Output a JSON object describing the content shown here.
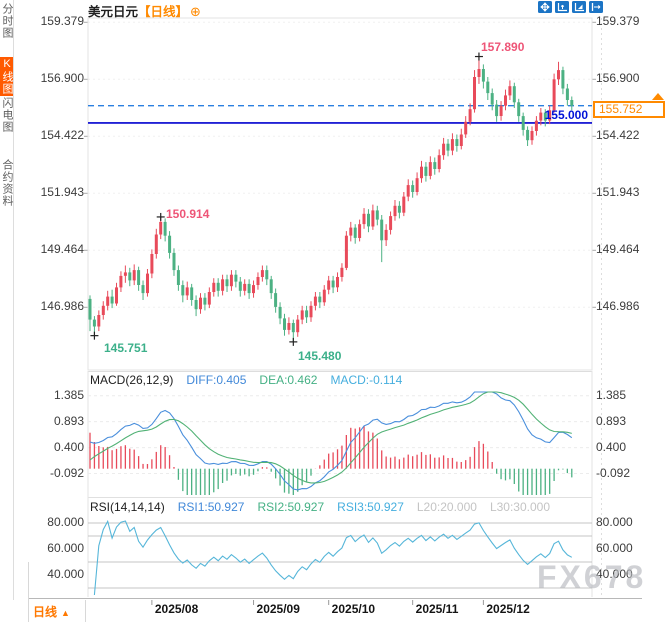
{
  "sidebar": {
    "items": [
      {
        "label": "分时图",
        "active": false
      },
      {
        "label": "K线图",
        "active": true
      },
      {
        "label": "闪电图",
        "active": false
      },
      {
        "label": "合约资料",
        "active": false
      }
    ]
  },
  "header": {
    "title": "美元日元",
    "period": "【日线】",
    "plus_icon": "⊕"
  },
  "toolbar": {
    "icons": [
      "crosshair-pan-icon",
      "axis-zoom-icon",
      "axis-scale-icon",
      "export-right-icon"
    ]
  },
  "bottom_bar": {
    "interval_label": "日线",
    "arrow": "▲"
  },
  "watermark": "FX678",
  "chart_data": {
    "type": "candlestick",
    "symbol": "美元日元",
    "interval": "日线",
    "colors": {
      "up": "#e84a5a",
      "down": "#4cb183",
      "diff_line": "#4a8fdc",
      "dea_line": "#52b276",
      "rsi_line": "#56b6d9",
      "dashed_line": "#2a7fe0",
      "solid_line": "#0000cf",
      "accent": "#ff8a00"
    },
    "y_axis": {
      "labels": [
        "159.379",
        "156.900",
        "154.422",
        "151.943",
        "149.464",
        "146.986"
      ]
    },
    "x_axis": {
      "months": [
        {
          "label": "2025/08",
          "index": 14
        },
        {
          "label": "2025/09",
          "index": 37
        },
        {
          "label": "2025/10",
          "index": 54
        },
        {
          "label": "2025/11",
          "index": 73
        },
        {
          "label": "2025/12",
          "index": 89
        }
      ]
    },
    "lines": {
      "dashed_price": 155.752,
      "solid_price": 155.0,
      "solid_label": "155.000"
    },
    "last_price_box": {
      "text": "155.752"
    },
    "annotations": [
      {
        "text": "157.890",
        "index": 88,
        "price": 157.89,
        "type": "high"
      },
      {
        "text": "150.914",
        "index": 16,
        "price": 150.914,
        "type": "high"
      },
      {
        "text": "145.751",
        "index": 1,
        "price": 145.751,
        "type": "low"
      },
      {
        "text": "145.480",
        "index": 46,
        "price": 145.48,
        "type": "low"
      }
    ],
    "candles": [
      [
        147.35,
        147.5,
        145.95,
        146.45
      ],
      [
        146.45,
        146.6,
        145.751,
        146.15
      ],
      [
        146.15,
        146.85,
        145.95,
        146.65
      ],
      [
        146.65,
        147.25,
        146.45,
        147.05
      ],
      [
        147.05,
        147.7,
        146.85,
        147.45
      ],
      [
        147.45,
        147.75,
        146.95,
        147.15
      ],
      [
        147.15,
        148.05,
        147.05,
        147.85
      ],
      [
        147.85,
        148.55,
        147.65,
        148.35
      ],
      [
        148.35,
        148.8,
        148.05,
        148.5
      ],
      [
        148.5,
        148.7,
        147.9,
        148.15
      ],
      [
        148.15,
        148.85,
        147.95,
        148.6
      ],
      [
        148.6,
        148.75,
        147.7,
        147.95
      ],
      [
        147.95,
        148.15,
        147.3,
        147.6
      ],
      [
        147.6,
        148.65,
        147.45,
        148.45
      ],
      [
        148.45,
        149.5,
        148.25,
        149.3
      ],
      [
        149.3,
        150.4,
        149.1,
        150.15
      ],
      [
        150.15,
        150.914,
        149.95,
        150.7
      ],
      [
        150.7,
        150.85,
        149.85,
        150.1
      ],
      [
        150.1,
        150.3,
        149.1,
        149.35
      ],
      [
        149.35,
        149.55,
        148.35,
        148.6
      ],
      [
        148.6,
        148.8,
        147.7,
        147.95
      ],
      [
        147.95,
        148.15,
        147.2,
        147.5
      ],
      [
        147.5,
        148.1,
        147.3,
        147.85
      ],
      [
        147.85,
        148.0,
        147.05,
        147.3
      ],
      [
        147.3,
        147.5,
        146.6,
        146.9
      ],
      [
        146.9,
        147.6,
        146.7,
        147.4
      ],
      [
        147.4,
        147.6,
        146.85,
        147.1
      ],
      [
        147.1,
        147.85,
        146.95,
        147.65
      ],
      [
        147.65,
        148.25,
        147.45,
        148.05
      ],
      [
        148.05,
        148.25,
        147.45,
        147.7
      ],
      [
        147.7,
        148.4,
        147.5,
        148.2
      ],
      [
        148.2,
        148.4,
        147.65,
        147.9
      ],
      [
        147.9,
        148.6,
        147.7,
        148.4
      ],
      [
        148.4,
        148.6,
        147.85,
        148.1
      ],
      [
        148.1,
        148.3,
        147.45,
        147.7
      ],
      [
        147.7,
        148.2,
        147.5,
        148.0
      ],
      [
        148.0,
        148.2,
        147.35,
        147.6
      ],
      [
        147.6,
        148.15,
        147.4,
        147.95
      ],
      [
        147.95,
        148.5,
        147.75,
        148.3
      ],
      [
        148.3,
        148.8,
        148.1,
        148.6
      ],
      [
        148.6,
        148.8,
        147.95,
        148.2
      ],
      [
        148.2,
        148.35,
        147.35,
        147.6
      ],
      [
        147.6,
        147.8,
        146.75,
        147.0
      ],
      [
        147.0,
        147.2,
        146.25,
        146.5
      ],
      [
        146.5,
        146.7,
        145.75,
        146.0
      ],
      [
        146.0,
        146.55,
        145.8,
        146.3
      ],
      [
        146.3,
        146.45,
        145.48,
        145.9
      ],
      [
        145.9,
        146.65,
        145.7,
        146.45
      ],
      [
        146.45,
        147.05,
        146.25,
        146.85
      ],
      [
        146.85,
        147.05,
        146.3,
        146.55
      ],
      [
        146.55,
        147.25,
        146.35,
        147.05
      ],
      [
        147.05,
        147.65,
        146.85,
        147.45
      ],
      [
        147.45,
        147.65,
        146.95,
        147.2
      ],
      [
        147.2,
        147.95,
        147.05,
        147.75
      ],
      [
        147.75,
        148.35,
        147.55,
        148.15
      ],
      [
        148.15,
        148.35,
        147.6,
        147.85
      ],
      [
        147.85,
        148.5,
        147.65,
        148.3
      ],
      [
        148.3,
        148.9,
        148.1,
        148.7
      ],
      [
        148.7,
        150.3,
        148.6,
        150.1
      ],
      [
        150.1,
        150.7,
        149.85,
        150.45
      ],
      [
        150.45,
        150.6,
        149.75,
        150.0
      ],
      [
        150.0,
        150.8,
        149.85,
        150.6
      ],
      [
        150.6,
        151.3,
        150.4,
        151.05
      ],
      [
        151.05,
        151.25,
        150.25,
        150.5
      ],
      [
        150.5,
        151.45,
        150.35,
        151.2
      ],
      [
        151.2,
        151.4,
        150.55,
        150.8
      ],
      [
        150.8,
        151.0,
        148.95,
        149.9
      ],
      [
        149.9,
        150.6,
        149.65,
        150.35
      ],
      [
        150.35,
        151.15,
        150.15,
        150.95
      ],
      [
        150.95,
        151.65,
        150.75,
        151.4
      ],
      [
        151.4,
        151.6,
        150.85,
        151.1
      ],
      [
        151.1,
        152.0,
        150.95,
        151.8
      ],
      [
        151.8,
        152.55,
        151.6,
        152.3
      ],
      [
        152.3,
        152.5,
        151.75,
        152.0
      ],
      [
        152.0,
        152.85,
        151.85,
        152.6
      ],
      [
        152.6,
        153.35,
        152.4,
        153.1
      ],
      [
        153.1,
        153.3,
        152.45,
        152.7
      ],
      [
        152.7,
        153.55,
        152.55,
        153.3
      ],
      [
        153.3,
        153.5,
        152.75,
        153.0
      ],
      [
        153.0,
        153.85,
        152.85,
        153.6
      ],
      [
        153.6,
        154.35,
        153.4,
        154.1
      ],
      [
        154.1,
        154.3,
        153.55,
        153.8
      ],
      [
        153.8,
        154.55,
        153.6,
        154.3
      ],
      [
        154.3,
        154.5,
        153.75,
        154.0
      ],
      [
        154.0,
        154.75,
        153.85,
        154.5
      ],
      [
        154.5,
        155.3,
        154.35,
        155.05
      ],
      [
        155.05,
        155.85,
        154.9,
        155.6
      ],
      [
        155.6,
        157.3,
        155.45,
        157.0
      ],
      [
        157.0,
        157.89,
        156.7,
        157.35
      ],
      [
        157.35,
        157.55,
        156.5,
        156.8
      ],
      [
        156.8,
        157.0,
        156.0,
        156.3
      ],
      [
        156.3,
        156.5,
        155.55,
        155.8
      ],
      [
        155.8,
        156.0,
        155.05,
        155.3
      ],
      [
        155.3,
        155.95,
        155.1,
        155.75
      ],
      [
        155.75,
        156.45,
        155.55,
        156.2
      ],
      [
        156.2,
        156.85,
        156.0,
        156.6
      ],
      [
        156.6,
        156.75,
        155.65,
        155.9
      ],
      [
        155.9,
        156.05,
        155.05,
        155.3
      ],
      [
        155.3,
        155.45,
        154.45,
        154.7
      ],
      [
        154.7,
        154.85,
        154.0,
        154.25
      ],
      [
        154.25,
        154.85,
        154.05,
        154.65
      ],
      [
        154.65,
        155.3,
        154.45,
        155.1
      ],
      [
        155.1,
        155.65,
        154.9,
        155.45
      ],
      [
        155.45,
        155.6,
        154.85,
        155.1
      ],
      [
        155.1,
        155.75,
        154.95,
        155.55
      ],
      [
        155.55,
        157.15,
        155.45,
        156.9
      ],
      [
        156.9,
        157.66,
        156.65,
        157.3
      ],
      [
        157.3,
        157.45,
        156.25,
        156.5
      ],
      [
        156.5,
        156.7,
        155.75,
        156.0
      ],
      [
        156.0,
        156.15,
        155.55,
        155.752
      ]
    ],
    "macd": {
      "header": "MACD(26,12,9)",
      "diff_label": "DIFF:0.405",
      "dea_label": "DEA:0.462",
      "macd_label": "MACD:-0.114",
      "axis_labels": [
        {
          "text": "1.385",
          "v": 1.385
        },
        {
          "text": "0.893",
          "v": 0.893
        },
        {
          "text": "0.400",
          "v": 0.4
        },
        {
          "text": "-0.092",
          "v": -0.092
        }
      ]
    },
    "rsi": {
      "header": "RSI(14,14,14)",
      "rsi1_label": "RSI1:50.927",
      "rsi2_label": "RSI2:50.927",
      "rsi3_label": "RSI3:50.927",
      "l20_label": "L20:20.000",
      "l30_label": "L30:30.000",
      "axis_labels": [
        {
          "text": "80.000",
          "v": 80
        },
        {
          "text": "60.000",
          "v": 60
        },
        {
          "text": "40.000",
          "v": 40
        }
      ],
      "gridlines": [
        80,
        70,
        50,
        30
      ]
    }
  }
}
